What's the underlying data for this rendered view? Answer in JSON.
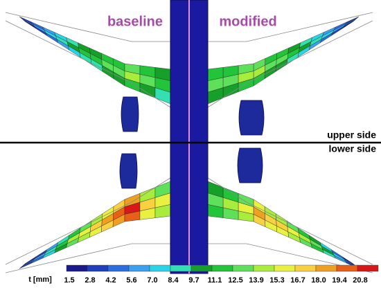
{
  "labels": {
    "baseline": "baseline",
    "modified": "modified",
    "upper_side": "upper side",
    "lower_side": "lower side"
  },
  "colorbar": {
    "title": "t [mm]",
    "ticks": [
      "1.5",
      "2.8",
      "4.2",
      "5.6",
      "7.0",
      "8.4",
      "9.7",
      "11.1",
      "12.5",
      "13.9",
      "15.3",
      "16.7",
      "18.0",
      "19.4",
      "20.8"
    ],
    "colors": [
      "#1a1a8c",
      "#1f3fbf",
      "#2a6ee0",
      "#3aa0f0",
      "#29d4e8",
      "#33e0b0",
      "#16a02a",
      "#22c43a",
      "#5ee05a",
      "#a8ec3c",
      "#e8f040",
      "#f8d040",
      "#f0a020",
      "#e86018",
      "#d81818"
    ]
  }
}
